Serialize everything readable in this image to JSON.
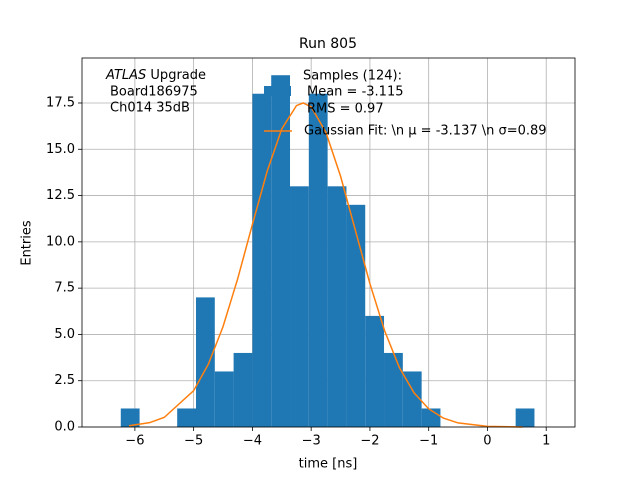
{
  "chart_data": {
    "type": "histogram",
    "title": "Run 805",
    "xlabel": "time [ns]",
    "ylabel": "Entries",
    "annotation": {
      "emphasis": "ATLAS",
      "lines": [
        "Upgrade",
        "Board186975",
        "Ch014 35dB"
      ]
    },
    "name": [
      "Samples (124):",
      "Mean = -3.115",
      "RMS = 0.97"
    ],
    "color": "#1f77b4",
    "bins": [
      -6.24,
      -5.92,
      -5.6,
      -5.28,
      -4.96,
      -4.64,
      -4.32,
      -4.0,
      -3.68,
      -3.36,
      -3.04,
      -2.72,
      -2.4,
      -2.08,
      -1.76,
      -1.44,
      -1.12,
      -0.8,
      -0.48,
      -0.16,
      0.16,
      0.48,
      0.8
    ],
    "values": [
      1,
      0,
      0,
      1,
      7,
      3,
      4,
      18,
      19,
      13,
      18,
      13,
      12,
      6,
      4,
      3,
      1,
      0,
      0,
      0,
      0,
      1
    ],
    "fit": {
      "type": "line",
      "name": "Gaussian Fit: \\n μ = -3.137 \\n σ=0.89",
      "color": "#ff7f0e",
      "x": [
        -6.1,
        -5.75,
        -5.5,
        -5.0,
        -4.75,
        -4.5,
        -4.25,
        -4.0,
        -3.75,
        -3.5,
        -3.25,
        -3.137,
        -3.0,
        -2.75,
        -2.5,
        -2.25,
        -2.0,
        -1.75,
        -1.5,
        -1.25,
        -1.0,
        -0.75,
        -0.5,
        0.0,
        0.6
      ],
      "values": [
        0.069,
        0.235,
        0.52,
        1.96,
        3.39,
        5.42,
        8.01,
        10.94,
        13.8,
        16.1,
        17.36,
        17.5,
        17.29,
        15.92,
        13.55,
        10.65,
        7.74,
        5.2,
        3.22,
        1.85,
        0.98,
        0.48,
        0.22,
        0.035,
        0.003
      ]
    },
    "xlim": [
      -6.9,
      1.49
    ],
    "ylim": [
      0,
      19.93
    ],
    "xticks": [
      {
        "value": -6,
        "label": "−6"
      },
      {
        "value": -5,
        "label": "−5"
      },
      {
        "value": -4,
        "label": "−4"
      },
      {
        "value": -3,
        "label": "−3"
      },
      {
        "value": -2,
        "label": "−2"
      },
      {
        "value": -1,
        "label": "−1"
      },
      0,
      1
    ],
    "yticks": [
      {
        "value": 0,
        "label": "0.0"
      },
      2.5,
      {
        "value": 5,
        "label": "5.0"
      },
      7.5,
      {
        "value": 10,
        "label": "10.0"
      },
      12.5,
      {
        "value": 15,
        "label": "15.0"
      },
      17.5
    ],
    "grid": true
  }
}
